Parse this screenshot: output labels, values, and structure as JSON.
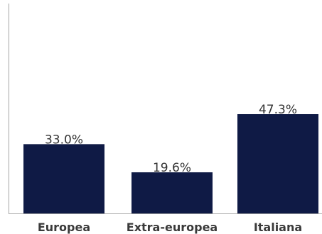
{
  "chart_data": {
    "type": "bar",
    "categories": [
      "Europea",
      "Extra-europea",
      "Italiana"
    ],
    "values": [
      33.0,
      19.6,
      47.3
    ],
    "data_labels": [
      "33.0%",
      "19.6%",
      "47.3%"
    ],
    "title": "",
    "xlabel": "",
    "ylabel": "",
    "ylim": [
      0,
      100
    ],
    "grid": false,
    "legend": "none",
    "colors": {
      "bar": "#0f1a45",
      "axis": "#a6a6a6",
      "label": "#333333"
    }
  }
}
